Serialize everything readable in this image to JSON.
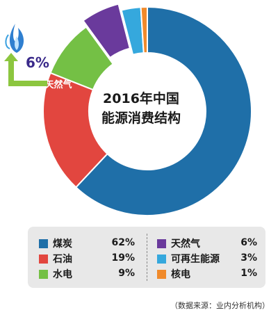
{
  "chart_data": {
    "type": "pie",
    "title": "2016年中国能源消费结构",
    "title_lines": [
      "2016年中国",
      "能源消费结构"
    ],
    "categories": [
      "煤炭",
      "石油",
      "水电",
      "天然气",
      "可再生能源",
      "核电"
    ],
    "values": [
      62,
      19,
      9,
      6,
      3,
      1
    ],
    "value_labels": [
      "62%",
      "19%",
      "9%",
      "6%",
      "3%",
      "1%"
    ],
    "colors": [
      "#1f6fa8",
      "#e2463f",
      "#74c045",
      "#6a3a9c",
      "#35a8dd",
      "#f08a2b"
    ],
    "callout_label": "天然气",
    "callout_value": "6%",
    "legend_position": "bottom",
    "source": "（数据来源：业内分析机构）"
  }
}
